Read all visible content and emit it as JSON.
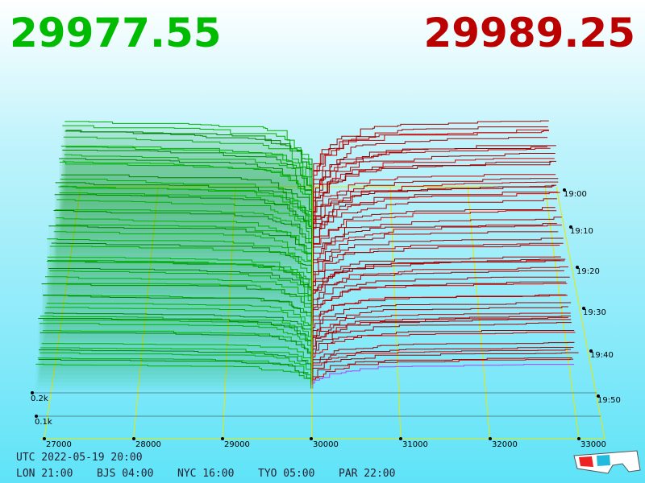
{
  "header": {
    "bid": "29977.55",
    "ask": "29989.25"
  },
  "price_axis": {
    "labels": [
      "27000",
      "28000",
      "29000",
      "30000",
      "31000",
      "32000",
      "33000"
    ]
  },
  "depth_axis": {
    "labels": [
      "0.1k",
      "0.2k"
    ]
  },
  "time_axis": {
    "labels": [
      "19:00",
      "19:10",
      "19:20",
      "19:30",
      "19:40",
      "19:50"
    ]
  },
  "footer": {
    "utc": "UTC 2022-05-19 20:00",
    "clocks": [
      "LON 21:00",
      "BJS 04:00",
      "NYC 16:00",
      "TYO 05:00",
      "PAR 22:00"
    ]
  }
}
